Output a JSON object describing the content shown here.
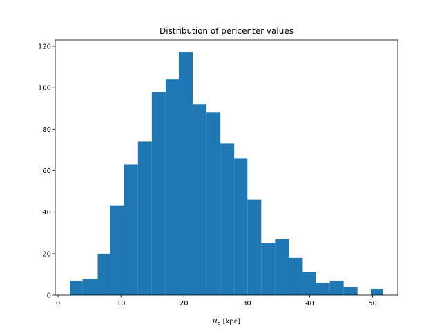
{
  "chart_data": {
    "type": "bar",
    "title": "Distribution of pericenter values",
    "xlabel_main": "R",
    "xlabel_sub": "p",
    "xlabel_unit": " [kpc]",
    "ylabel": "",
    "xlim": [
      -0.45,
      54.0
    ],
    "ylim": [
      0,
      123
    ],
    "xticks": [
      0,
      10,
      20,
      30,
      40,
      50
    ],
    "yticks": [
      0,
      20,
      40,
      60,
      80,
      100,
      120
    ],
    "bins": [
      {
        "x0": 1.9,
        "x1": 3.9,
        "count": 7
      },
      {
        "x0": 3.9,
        "x1": 6.3,
        "count": 8
      },
      {
        "x0": 6.3,
        "x1": 8.3,
        "count": 20
      },
      {
        "x0": 8.3,
        "x1": 10.5,
        "count": 43
      },
      {
        "x0": 10.5,
        "x1": 12.7,
        "count": 63
      },
      {
        "x0": 12.7,
        "x1": 14.9,
        "count": 74
      },
      {
        "x0": 14.9,
        "x1": 17.1,
        "count": 98
      },
      {
        "x0": 17.1,
        "x1": 19.2,
        "count": 104
      },
      {
        "x0": 19.2,
        "x1": 21.4,
        "count": 117
      },
      {
        "x0": 21.4,
        "x1": 23.6,
        "count": 92
      },
      {
        "x0": 23.6,
        "x1": 25.8,
        "count": 88
      },
      {
        "x0": 25.8,
        "x1": 28.0,
        "count": 73
      },
      {
        "x0": 28.0,
        "x1": 30.1,
        "count": 66
      },
      {
        "x0": 30.1,
        "x1": 32.3,
        "count": 46
      },
      {
        "x0": 32.3,
        "x1": 34.5,
        "count": 25
      },
      {
        "x0": 34.5,
        "x1": 36.7,
        "count": 27
      },
      {
        "x0": 36.7,
        "x1": 38.9,
        "count": 18
      },
      {
        "x0": 38.9,
        "x1": 41.0,
        "count": 11
      },
      {
        "x0": 41.0,
        "x1": 43.2,
        "count": 6
      },
      {
        "x0": 43.2,
        "x1": 45.4,
        "count": 7
      },
      {
        "x0": 45.4,
        "x1": 47.6,
        "count": 4
      },
      {
        "x0": 49.7,
        "x1": 51.6,
        "count": 3
      }
    ],
    "bar_color": "#1f77b4",
    "grid": false,
    "legend": "none"
  }
}
